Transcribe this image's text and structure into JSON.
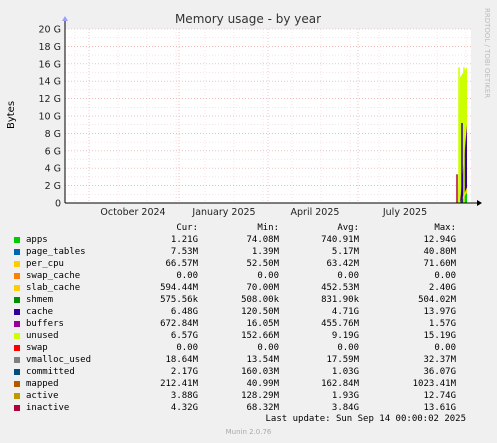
{
  "chart_data": {
    "type": "area",
    "title": "Memory usage - by year",
    "ylabel": "Bytes",
    "xlabel": "",
    "side_label": "RRDTOOL / TOBI OETIKER",
    "ylim": [
      0,
      20
    ],
    "y_unit": "G",
    "y_ticks": [
      "0",
      "2 G",
      "4 G",
      "6 G",
      "8 G",
      "10 G",
      "12 G",
      "14 G",
      "16 G",
      "18 G",
      "20 G"
    ],
    "x_ticks": [
      "October 2024",
      "January 2025",
      "April 2025",
      "July 2025"
    ],
    "grid": true,
    "legend_position": "bottom",
    "series": [
      {
        "name": "apps",
        "color": "#00cc00",
        "cur": "1.21G",
        "min": "74.08M",
        "avg": "740.91M",
        "max": "12.94G"
      },
      {
        "name": "page_tables",
        "color": "#0066b3",
        "cur": "7.53M",
        "min": "1.39M",
        "avg": "5.17M",
        "max": "40.80M"
      },
      {
        "name": "per_cpu",
        "color": "#ffcc00",
        "cur": "66.57M",
        "min": "52.50M",
        "avg": "63.42M",
        "max": "71.60M"
      },
      {
        "name": "swap_cache",
        "color": "#ff8000",
        "cur": "0.00",
        "min": "0.00",
        "avg": "0.00",
        "max": "0.00"
      },
      {
        "name": "slab_cache",
        "color": "#ffcc00",
        "cur": "594.44M",
        "min": "70.00M",
        "avg": "452.53M",
        "max": "2.40G"
      },
      {
        "name": "shmem",
        "color": "#008f00",
        "cur": "575.56k",
        "min": "508.00k",
        "avg": "831.90k",
        "max": "504.02M"
      },
      {
        "name": "cache",
        "color": "#330099",
        "cur": "6.48G",
        "min": "120.50M",
        "avg": "4.71G",
        "max": "13.97G"
      },
      {
        "name": "buffers",
        "color": "#990099",
        "cur": "672.84M",
        "min": "16.05M",
        "avg": "455.76M",
        "max": "1.57G"
      },
      {
        "name": "unused",
        "color": "#ccff00",
        "cur": "6.57G",
        "min": "152.66M",
        "avg": "9.19G",
        "max": "15.19G"
      },
      {
        "name": "swap",
        "color": "#ff0000",
        "cur": "0.00",
        "min": "0.00",
        "avg": "0.00",
        "max": "0.00"
      },
      {
        "name": "vmalloc_used",
        "color": "#808080",
        "cur": "18.64M",
        "min": "13.54M",
        "avg": "17.59M",
        "max": "32.37M"
      },
      {
        "name": "committed",
        "color": "#004d80",
        "cur": "2.17G",
        "min": "160.03M",
        "avg": "1.03G",
        "max": "36.07G"
      },
      {
        "name": "mapped",
        "color": "#b35900",
        "cur": "212.41M",
        "min": "40.99M",
        "avg": "162.84M",
        "max": "1023.41M"
      },
      {
        "name": "active",
        "color": "#bf9900",
        "cur": "3.88G",
        "min": "128.29M",
        "avg": "1.93G",
        "max": "12.74G"
      },
      {
        "name": "inactive",
        "color": "#b3003c",
        "cur": "4.32G",
        "min": "68.32M",
        "avg": "3.84G",
        "max": "13.61G"
      }
    ],
    "stack_end": [
      {
        "name": "apps",
        "value": 1.2
      },
      {
        "name": "slab_cache",
        "value": 0.6
      },
      {
        "name": "cache",
        "value": 6.5
      },
      {
        "name": "buffers",
        "value": 0.7
      },
      {
        "name": "unused",
        "value": 6.6
      }
    ]
  },
  "legend_headers": {
    "cur": "Cur:",
    "min": "Min:",
    "avg": "Avg:",
    "max": "Max:"
  },
  "last_update": "Last update: Sun Sep 14 00:00:02 2025",
  "footer": "Munin 2.0.76"
}
